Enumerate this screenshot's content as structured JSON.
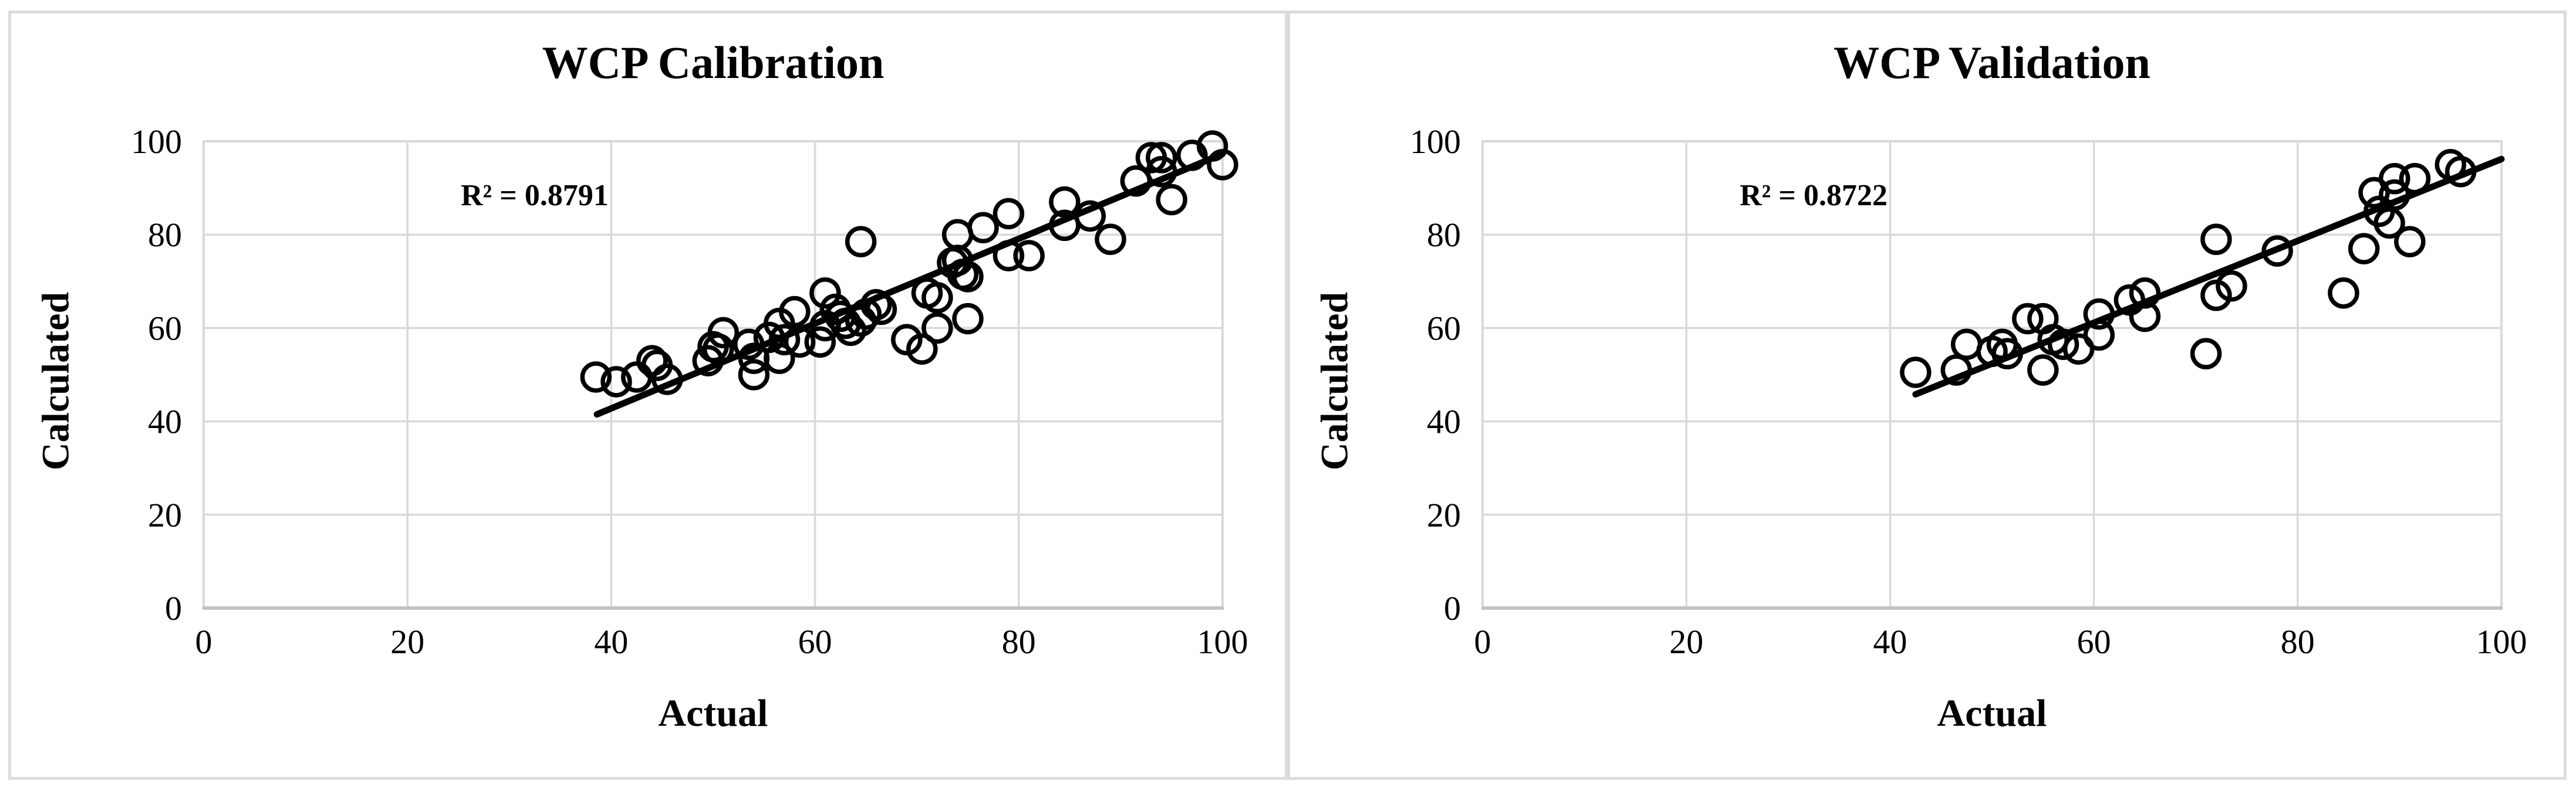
{
  "figure": {
    "background": "#ffffff",
    "panel_titles": [
      "WCP Calibration",
      "WCP Validation"
    ]
  },
  "colors": {
    "background": "#ffffff",
    "panel_border": "#dcdcdc",
    "gridline": "#d9d9d9",
    "axis_line": "#c3c3c3",
    "marker": "#000000",
    "trendline": "#000000",
    "text": "#000000"
  },
  "chart_data": [
    {
      "type": "scatter",
      "title": "WCP Calibration",
      "xlabel": "Actual",
      "ylabel": "Calculated",
      "annotation": "R² = 0.8791",
      "r_squared": 0.8791,
      "xlim": [
        0,
        100
      ],
      "ylim": [
        0,
        100
      ],
      "x_ticks": [
        0,
        20,
        40,
        60,
        80,
        100
      ],
      "y_ticks": [
        0,
        20,
        40,
        60,
        80,
        100
      ],
      "grid": true,
      "legend": false,
      "marker_style": "open-circle",
      "trendline": {
        "x1": 38.6,
        "y1": 41.5,
        "x2": 100,
        "y2": 97.3
      },
      "points": [
        [
          38.5,
          49.5
        ],
        [
          40.5,
          48.5
        ],
        [
          42.5,
          49.5
        ],
        [
          44,
          53
        ],
        [
          44.5,
          52
        ],
        [
          45.5,
          49
        ],
        [
          49.5,
          53
        ],
        [
          50,
          56
        ],
        [
          50.5,
          55.5
        ],
        [
          51,
          59
        ],
        [
          53.5,
          56.5
        ],
        [
          54,
          53.5
        ],
        [
          54,
          50
        ],
        [
          55.5,
          58
        ],
        [
          56.5,
          61
        ],
        [
          56.5,
          53.5
        ],
        [
          57,
          57.5
        ],
        [
          58,
          63.5
        ],
        [
          58.5,
          57
        ],
        [
          60.5,
          57
        ],
        [
          61,
          67.5
        ],
        [
          61,
          60.5
        ],
        [
          62,
          64
        ],
        [
          62.5,
          62.5
        ],
        [
          63,
          61
        ],
        [
          63.5,
          59.5
        ],
        [
          64.5,
          61.5
        ],
        [
          65,
          63
        ],
        [
          64.5,
          78.5
        ],
        [
          66,
          65
        ],
        [
          66.5,
          64
        ],
        [
          69,
          57.5
        ],
        [
          70.5,
          55.5
        ],
        [
          71,
          67.5
        ],
        [
          72,
          66.5
        ],
        [
          72,
          60
        ],
        [
          73.5,
          74
        ],
        [
          74,
          74.5
        ],
        [
          74.5,
          71.5
        ],
        [
          75,
          71
        ],
        [
          75,
          62
        ],
        [
          74,
          80
        ],
        [
          76.5,
          81.5
        ],
        [
          79,
          84.5
        ],
        [
          79,
          75.5
        ],
        [
          81,
          75.5
        ],
        [
          84.5,
          87
        ],
        [
          84.5,
          82
        ],
        [
          87,
          84
        ],
        [
          89,
          79
        ],
        [
          91.5,
          91.5
        ],
        [
          93,
          96.5
        ],
        [
          94,
          96.5
        ],
        [
          94,
          93.5
        ],
        [
          95,
          87.5
        ],
        [
          97,
          97
        ],
        [
          99,
          99
        ],
        [
          100,
          95
        ]
      ]
    },
    {
      "type": "scatter",
      "title": "WCP Validation",
      "xlabel": "Actual",
      "ylabel": "Calculated",
      "annotation": "R² = 0.8722",
      "r_squared": 0.8722,
      "xlim": [
        0,
        100
      ],
      "ylim": [
        0,
        100
      ],
      "x_ticks": [
        0,
        20,
        40,
        60,
        80,
        100
      ],
      "y_ticks": [
        0,
        20,
        40,
        60,
        80,
        100
      ],
      "grid": true,
      "legend": false,
      "marker_style": "open-circle",
      "trendline": {
        "x1": 42.5,
        "y1": 45.8,
        "x2": 100,
        "y2": 96.2
      },
      "points": [
        [
          42.5,
          50.5
        ],
        [
          46.5,
          51
        ],
        [
          47.5,
          56.5
        ],
        [
          50,
          55
        ],
        [
          51,
          56.5
        ],
        [
          51.5,
          54.5
        ],
        [
          53.5,
          62
        ],
        [
          55,
          62
        ],
        [
          55,
          51
        ],
        [
          56,
          57.5
        ],
        [
          57,
          56.5
        ],
        [
          58.5,
          55.5
        ],
        [
          60.5,
          63
        ],
        [
          60.5,
          58.5
        ],
        [
          63.5,
          66
        ],
        [
          65,
          67.5
        ],
        [
          65,
          62.5
        ],
        [
          71,
          54.5
        ],
        [
          72,
          79
        ],
        [
          72,
          67
        ],
        [
          73.5,
          69
        ],
        [
          78,
          76.5
        ],
        [
          84.5,
          67.5
        ],
        [
          86.5,
          77
        ],
        [
          87.5,
          89
        ],
        [
          88,
          85
        ],
        [
          89,
          82.5
        ],
        [
          89.5,
          92
        ],
        [
          89.5,
          88.5
        ],
        [
          91,
          78.5
        ],
        [
          91.5,
          92
        ],
        [
          95,
          95
        ],
        [
          96,
          93.5
        ]
      ]
    }
  ]
}
